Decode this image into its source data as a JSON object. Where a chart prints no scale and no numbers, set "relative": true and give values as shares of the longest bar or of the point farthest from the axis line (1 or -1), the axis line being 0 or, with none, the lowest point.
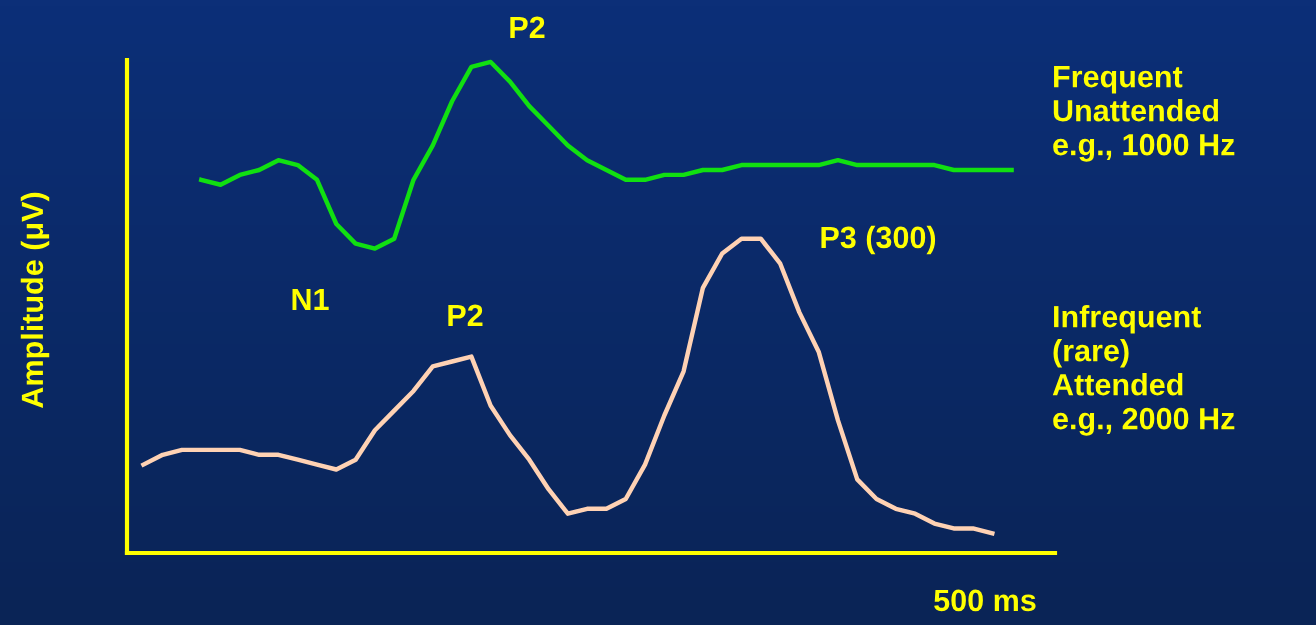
{
  "chart_data": {
    "type": "line",
    "relative": true,
    "ylabel": "Amplitude (μV)",
    "xlabel": "500 ms",
    "categories": [
      null,
      null,
      null,
      null,
      null,
      null,
      null,
      null,
      null,
      null,
      null,
      null,
      null,
      null,
      null,
      null,
      null,
      null,
      null,
      null,
      null,
      null,
      null,
      null,
      null,
      null,
      null,
      null,
      null,
      null,
      null,
      null,
      null,
      null,
      null,
      null,
      null,
      null,
      null,
      null,
      null,
      null,
      null,
      null,
      null,
      null
    ],
    "series": [
      {
        "name": "Frequent\nUnattended\ne.g., 1000 Hz",
        "color": "#11e011",
        "values": [
          null,
          null,
          null,
          0.76,
          0.75,
          0.77,
          0.78,
          0.8,
          0.79,
          0.76,
          0.67,
          0.63,
          0.62,
          0.64,
          0.76,
          0.83,
          0.92,
          0.99,
          1.0,
          0.96,
          0.91,
          0.87,
          0.83,
          0.8,
          0.78,
          0.76,
          0.76,
          0.77,
          0.77,
          0.78,
          0.78,
          0.79,
          0.79,
          0.79,
          0.79,
          0.79,
          0.8,
          0.79,
          0.79,
          0.79,
          0.79,
          0.79,
          0.78,
          0.78,
          0.78,
          0.78
        ]
      },
      {
        "name": "Infrequent\n(rare)\nAttended\ne.g., 2000 Hz",
        "color": "#ffd2b4",
        "values": [
          0.18,
          0.2,
          0.21,
          0.21,
          0.21,
          0.21,
          0.2,
          0.2,
          0.19,
          0.18,
          0.17,
          0.19,
          0.25,
          0.29,
          0.33,
          0.38,
          0.39,
          0.4,
          0.3,
          0.24,
          0.19,
          0.13,
          0.08,
          0.09,
          0.09,
          0.11,
          0.18,
          0.28,
          0.37,
          0.54,
          0.61,
          0.64,
          0.64,
          0.59,
          0.49,
          0.41,
          0.27,
          0.15,
          0.11,
          0.09,
          0.08,
          0.06,
          0.05,
          0.05,
          0.04,
          null
        ]
      }
    ],
    "annotations": [
      "P2",
      "N1",
      "P2",
      "P3 (300)"
    ],
    "line_style": "solid",
    "legend": false
  }
}
